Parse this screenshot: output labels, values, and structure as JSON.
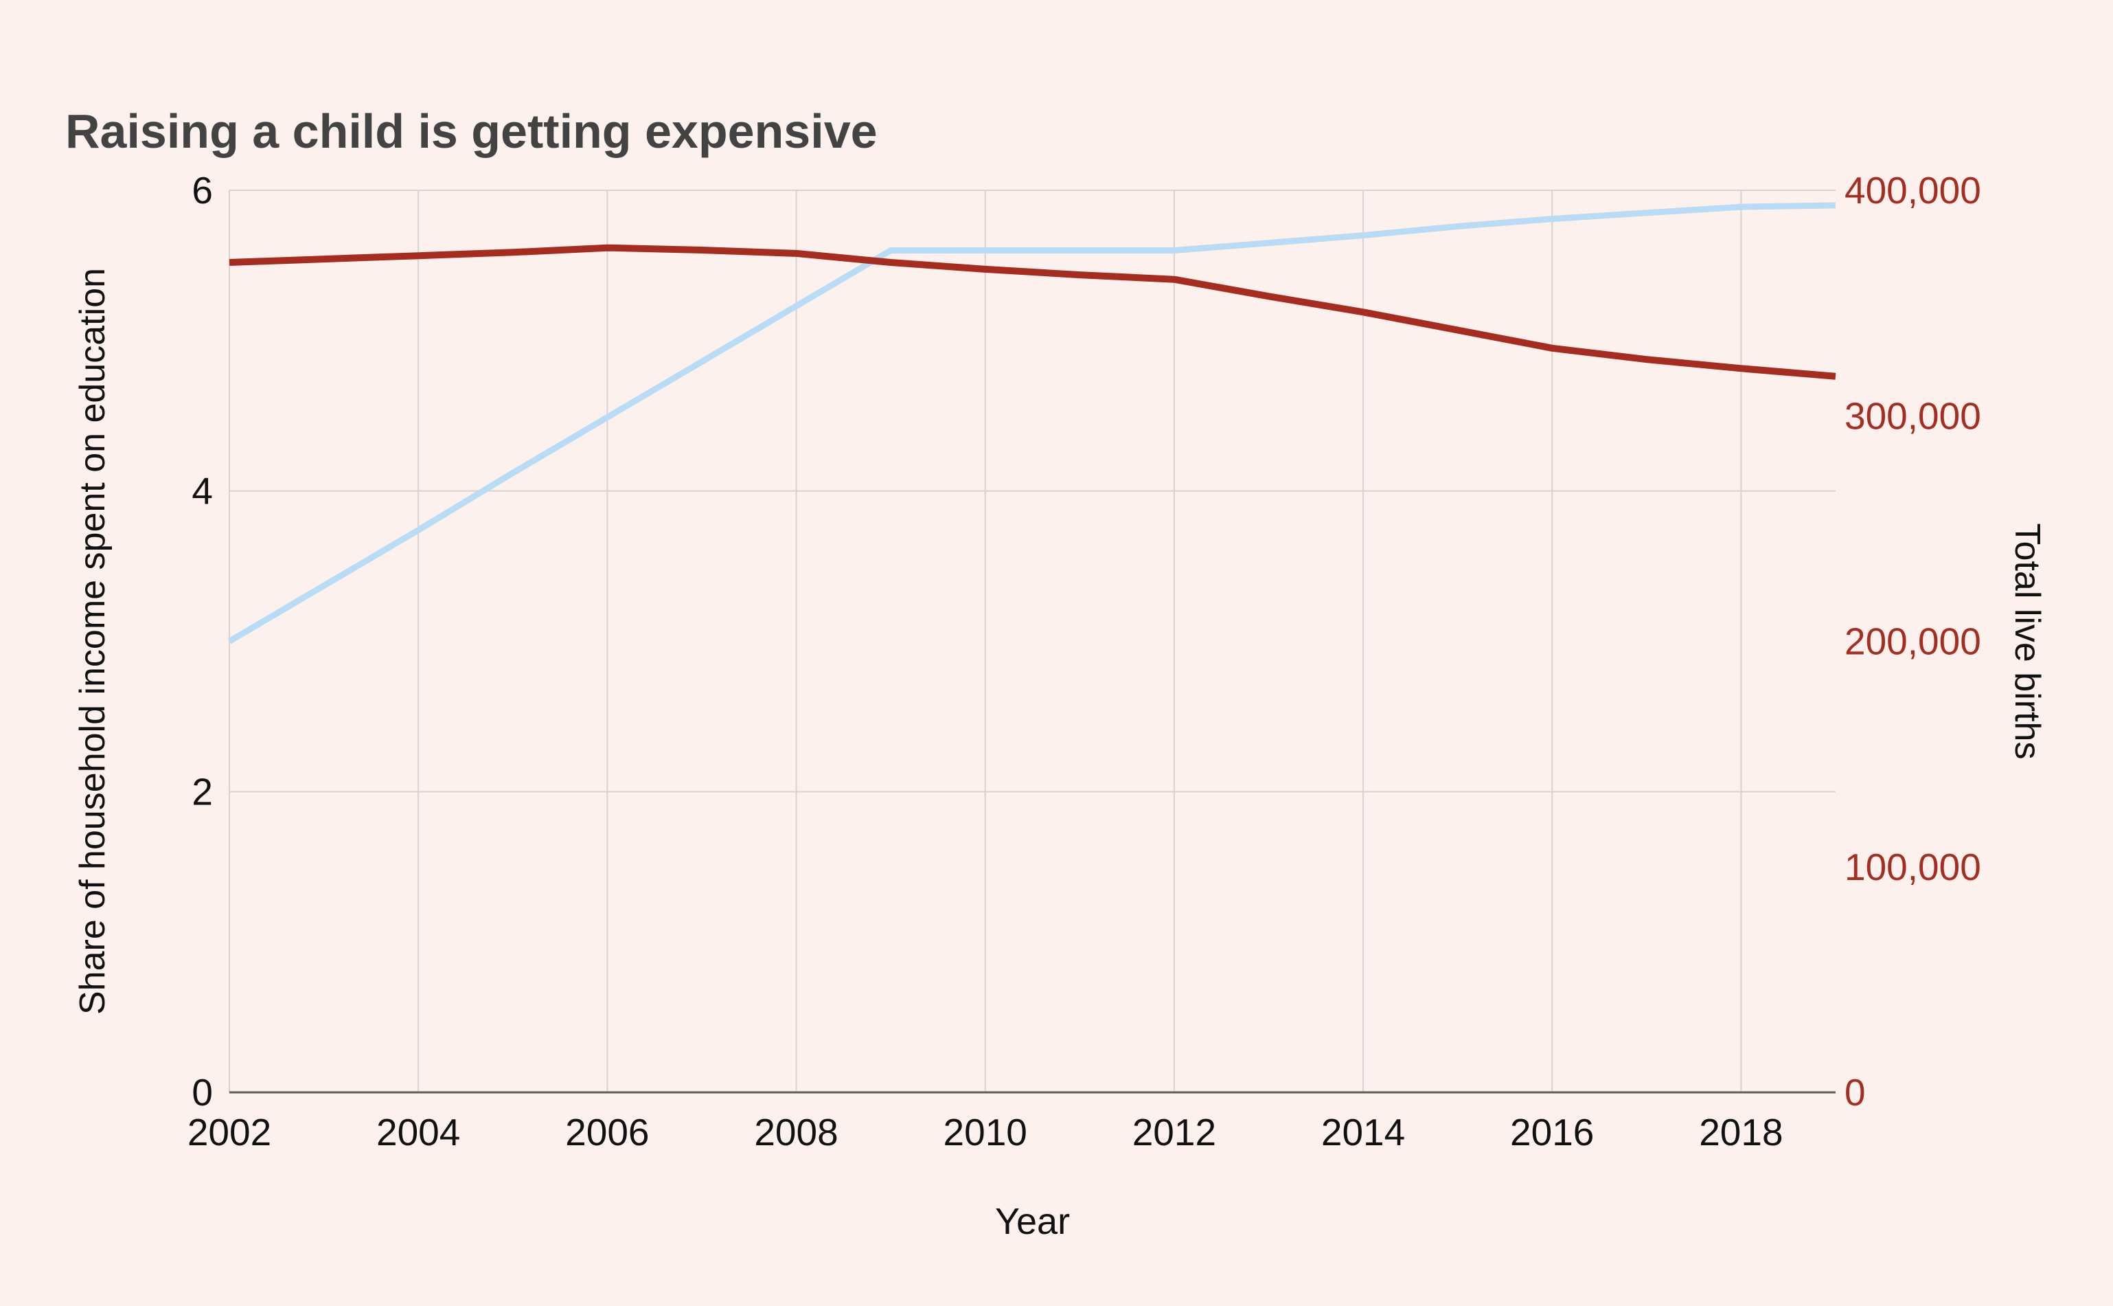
{
  "header": {
    "title": "Raising a child is getting expensive"
  },
  "colors": {
    "background": "#fcf1ec",
    "title_text": "#434343",
    "axis_text": "#111111",
    "right_axis_text": "#a52e22",
    "gridline": "#d6d3d1",
    "axis_line": "#5c5c5c",
    "series_blue": "#b8dcf5",
    "series_red": "#a62c20"
  },
  "chart_data": {
    "type": "line",
    "title": "Raising a child is getting expensive",
    "xlabel": "Year",
    "legend": "none",
    "grid": true,
    "x_range": [
      2002,
      2019
    ],
    "x": [
      2002,
      2003,
      2004,
      2005,
      2006,
      2007,
      2008,
      2009,
      2010,
      2011,
      2012,
      2013,
      2014,
      2015,
      2016,
      2017,
      2018,
      2019
    ],
    "x_ticks": {
      "values": [
        2002,
        2004,
        2006,
        2008,
        2010,
        2012,
        2014,
        2016,
        2018
      ],
      "labels": [
        "2002",
        "2004",
        "2006",
        "2008",
        "2010",
        "2012",
        "2014",
        "2016",
        "2018"
      ]
    },
    "left_axis": {
      "label": "Share of household income spent on education",
      "range": [
        0,
        6
      ],
      "tick_values": [
        0,
        2,
        4,
        6
      ],
      "tick_labels": [
        "0",
        "2",
        "4",
        "6"
      ]
    },
    "right_axis": {
      "label": "Total live births",
      "range": [
        0,
        400000
      ],
      "tick_values": [
        0,
        100000,
        200000,
        300000,
        400000
      ],
      "tick_labels": [
        "0",
        "100,000",
        "200,000",
        "300,000",
        "400,000"
      ]
    },
    "series": [
      {
        "name": "Share of household income spent on education",
        "axis": "left",
        "color": "#b8dcf5",
        "stroke_width": 9,
        "values": [
          3.0,
          3.37,
          3.74,
          4.12,
          4.49,
          4.86,
          5.23,
          5.6,
          5.6,
          5.6,
          5.6,
          5.65,
          5.7,
          5.76,
          5.81,
          5.85,
          5.89,
          5.9
        ]
      },
      {
        "name": "Total live births",
        "axis": "right",
        "color": "#a62c20",
        "stroke_width": 10,
        "values": [
          368000,
          369500,
          371000,
          372500,
          374500,
          373500,
          372000,
          368000,
          365000,
          362500,
          360500,
          353000,
          346000,
          338000,
          330000,
          325000,
          321000,
          317500
        ]
      }
    ]
  }
}
